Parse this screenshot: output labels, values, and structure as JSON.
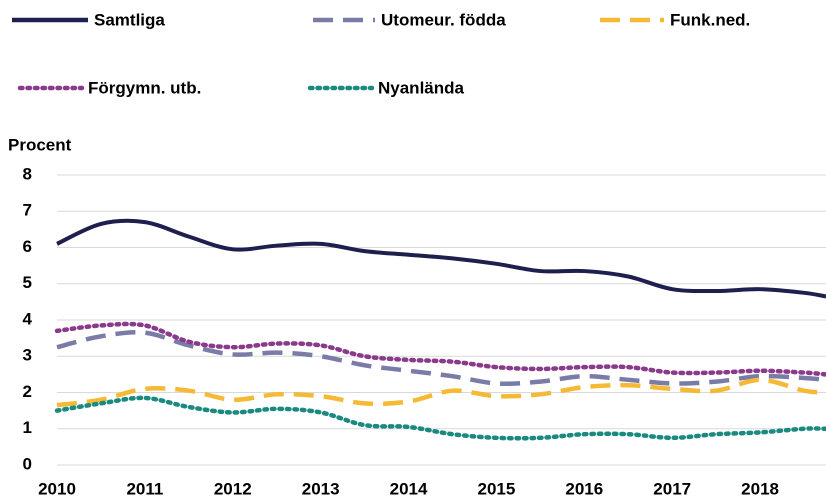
{
  "chart_data": {
    "type": "line",
    "y_label": "Procent",
    "x": [
      2010,
      2010.5,
      2011,
      2011.5,
      2012,
      2012.5,
      2013,
      2013.5,
      2014,
      2014.5,
      2015,
      2015.5,
      2016,
      2016.5,
      2017,
      2017.5,
      2018,
      2018.5,
      2018.75
    ],
    "xlim": [
      2010,
      2018.75
    ],
    "xticks": [
      2010,
      2011,
      2012,
      2013,
      2014,
      2015,
      2016,
      2017,
      2018
    ],
    "ylim": [
      0,
      8
    ],
    "yticks": [
      0,
      1,
      2,
      3,
      4,
      5,
      6,
      7,
      8
    ],
    "grid": true,
    "legend": "top",
    "series": [
      {
        "name": "Samtliga",
        "color": "#1f1f4f",
        "style": "solid",
        "values": [
          6.1,
          6.65,
          6.7,
          6.3,
          5.95,
          6.05,
          6.1,
          5.9,
          5.8,
          5.7,
          5.55,
          5.35,
          5.35,
          5.2,
          4.85,
          4.8,
          4.85,
          4.75,
          4.65
        ]
      },
      {
        "name": "Utomeur. födda",
        "color": "#7b7ba8",
        "style": "dashed",
        "values": [
          3.25,
          3.55,
          3.65,
          3.3,
          3.05,
          3.1,
          3.0,
          2.75,
          2.6,
          2.45,
          2.25,
          2.3,
          2.45,
          2.35,
          2.25,
          2.3,
          2.45,
          2.4,
          2.35
        ]
      },
      {
        "name": "Funk.ned.",
        "color": "#f5b935",
        "style": "dashed",
        "values": [
          1.65,
          1.8,
          2.1,
          2.05,
          1.8,
          1.95,
          1.9,
          1.7,
          1.75,
          2.05,
          1.9,
          1.95,
          2.15,
          2.2,
          2.1,
          2.05,
          2.35,
          2.05,
          2.0
        ]
      },
      {
        "name": "Förgymn. utb.",
        "color": "#8b3a8b",
        "style": "dotted",
        "values": [
          3.7,
          3.85,
          3.85,
          3.4,
          3.25,
          3.35,
          3.3,
          3.0,
          2.9,
          2.85,
          2.7,
          2.65,
          2.7,
          2.7,
          2.55,
          2.55,
          2.6,
          2.55,
          2.5
        ]
      },
      {
        "name": "Nyanlända",
        "color": "#1a8a80",
        "style": "dotted",
        "values": [
          1.5,
          1.7,
          1.85,
          1.6,
          1.45,
          1.55,
          1.45,
          1.1,
          1.05,
          0.85,
          0.75,
          0.75,
          0.85,
          0.85,
          0.75,
          0.85,
          0.9,
          1.0,
          1.0
        ]
      }
    ]
  }
}
